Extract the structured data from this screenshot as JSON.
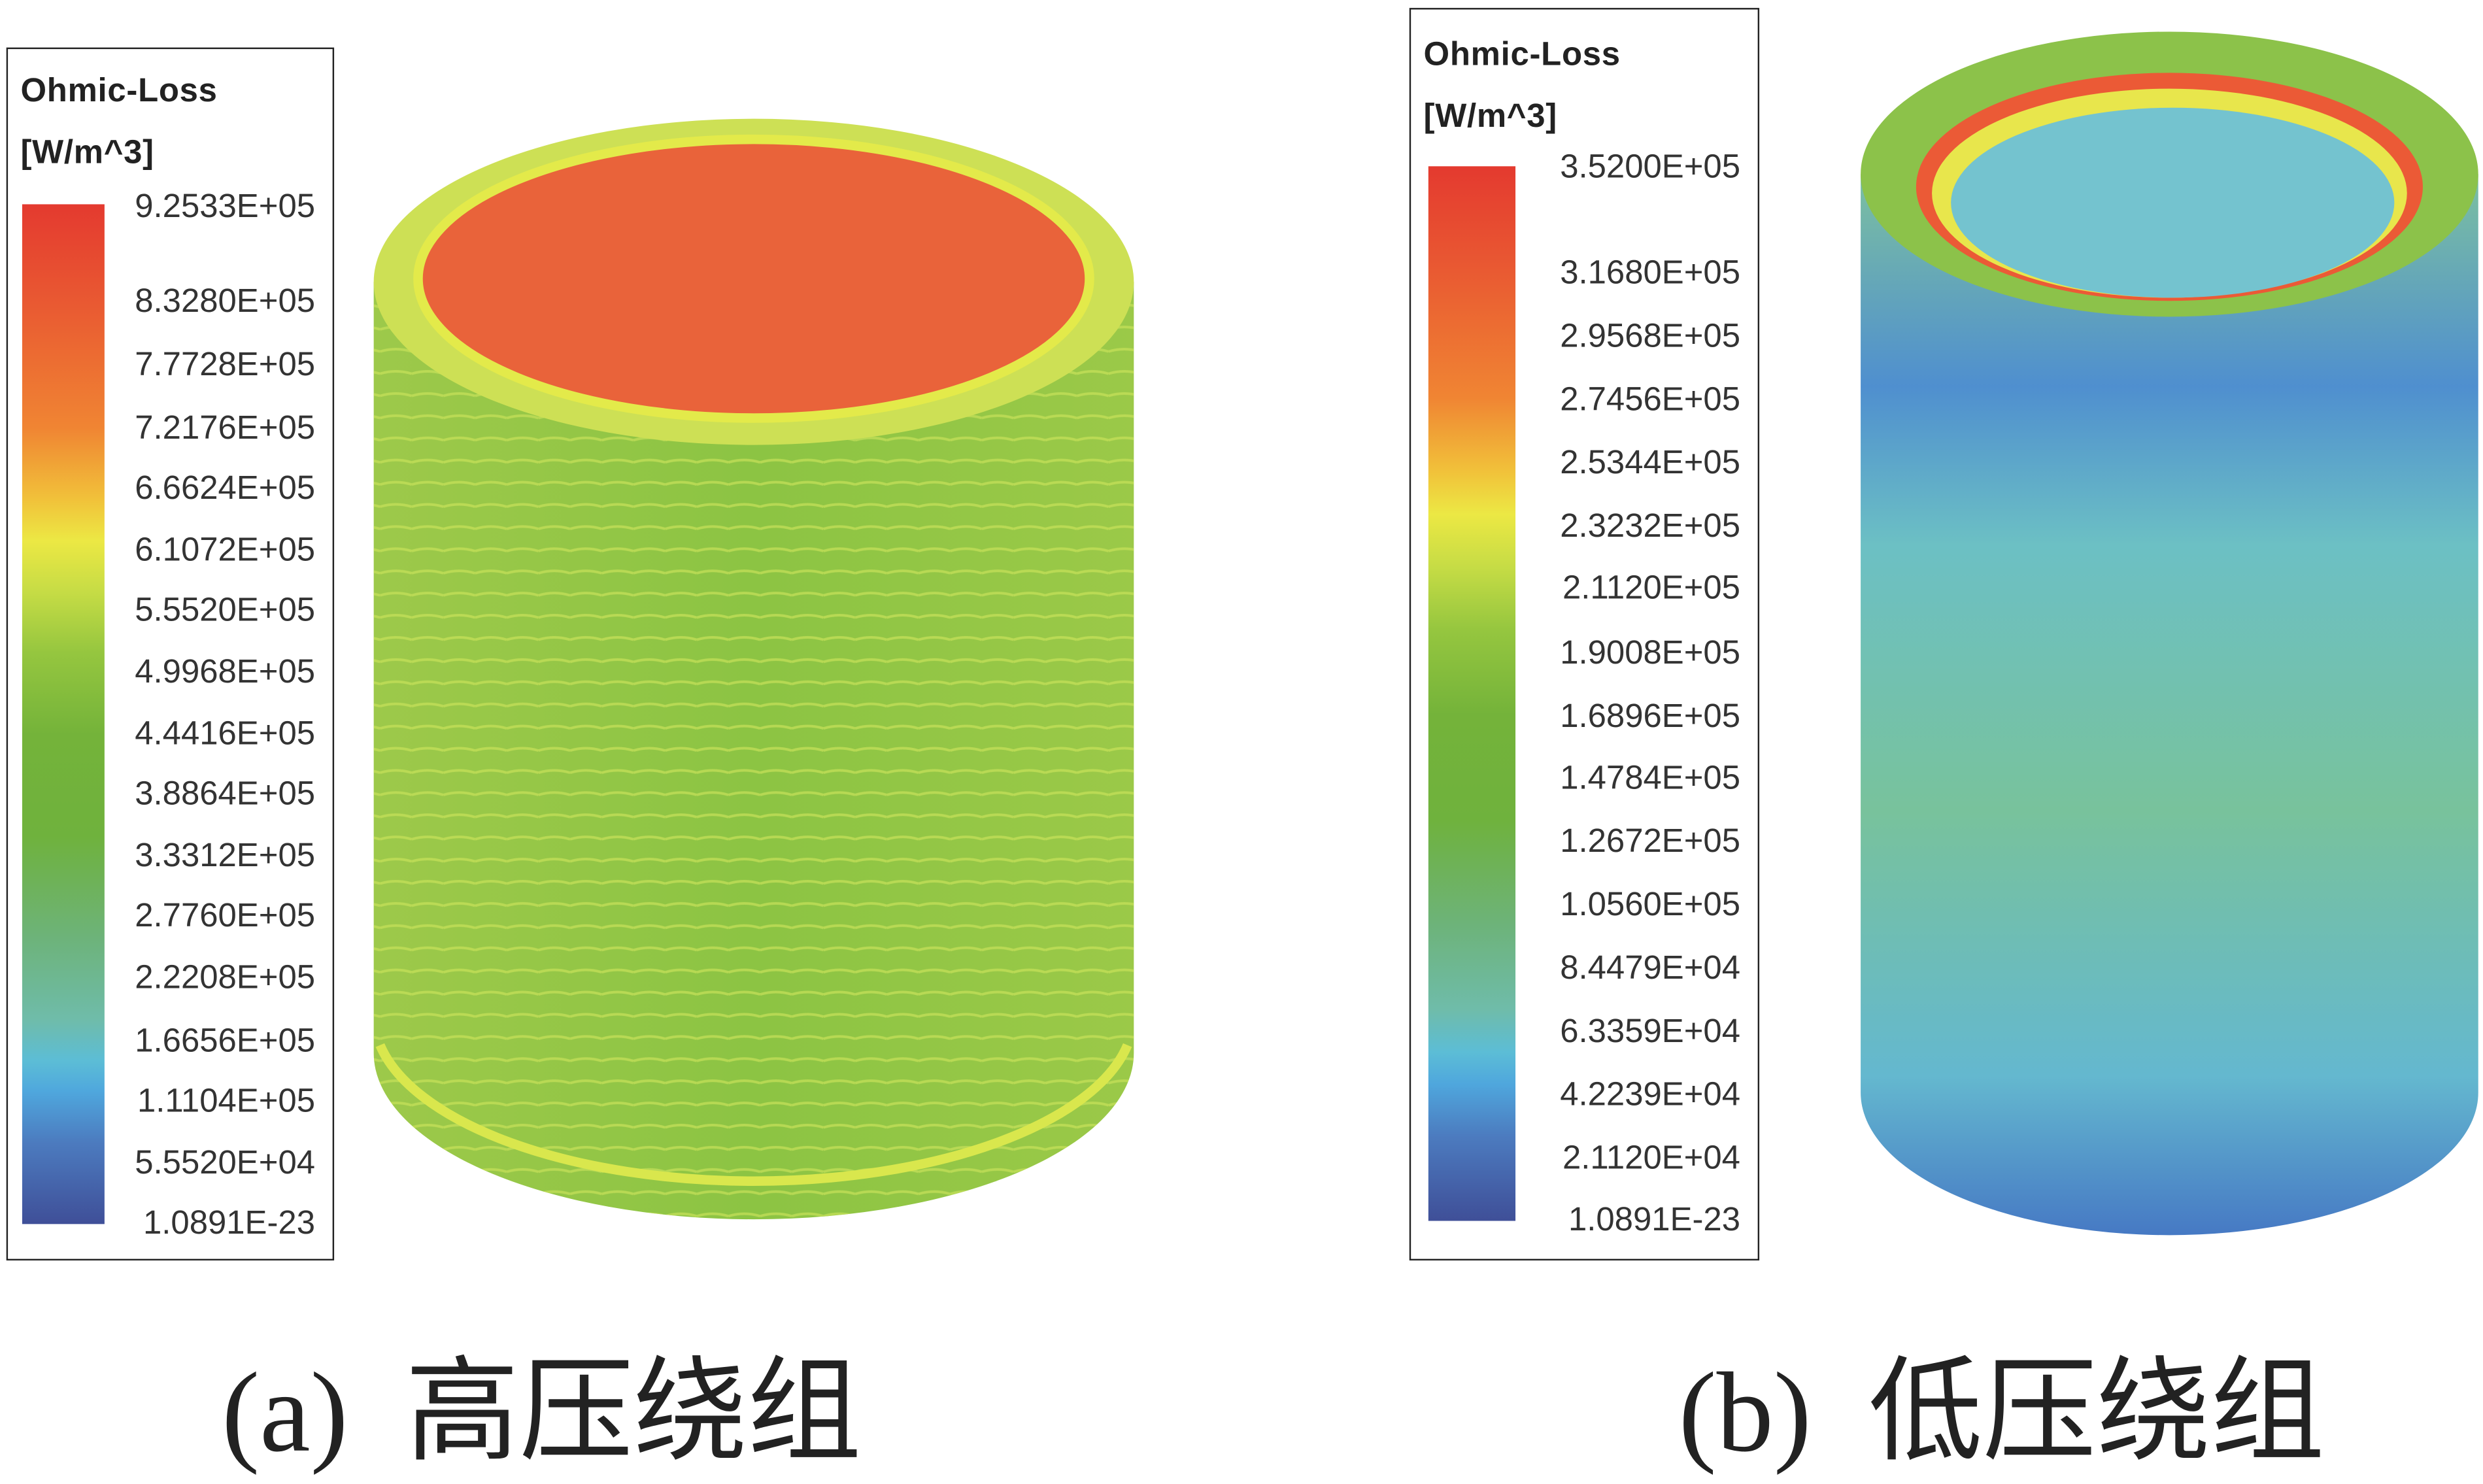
{
  "panels": [
    {
      "legend": {
        "title": "Ohmic-Loss",
        "unit": "[W/m^3]",
        "ticks": [
          "9.2533E+05",
          "8.3280E+05",
          "7.7728E+05",
          "7.2176E+05",
          "6.6624E+05",
          "6.1072E+05",
          "5.5520E+05",
          "4.9968E+05",
          "4.4416E+05",
          "3.8864E+05",
          "3.3312E+05",
          "2.7760E+05",
          "2.2208E+05",
          "1.6656E+05",
          "1.1104E+05",
          "5.5520E+04",
          "1.0891E-23"
        ]
      },
      "caption_label": "(a)",
      "caption_text": "高压绕组"
    },
    {
      "legend": {
        "title": "Ohmic-Loss",
        "unit": "[W/m^3]",
        "ticks": [
          "3.5200E+05",
          "3.1680E+05",
          "2.9568E+05",
          "2.7456E+05",
          "2.5344E+05",
          "2.3232E+05",
          "2.1120E+05",
          "1.9008E+05",
          "1.6896E+05",
          "1.4784E+05",
          "1.2672E+05",
          "1.0560E+05",
          "8.4479E+04",
          "6.3359E+04",
          "4.2239E+04",
          "2.1120E+04",
          "1.0891E-23"
        ]
      },
      "caption_label": "(b)",
      "caption_text": "低压绕组"
    }
  ]
}
